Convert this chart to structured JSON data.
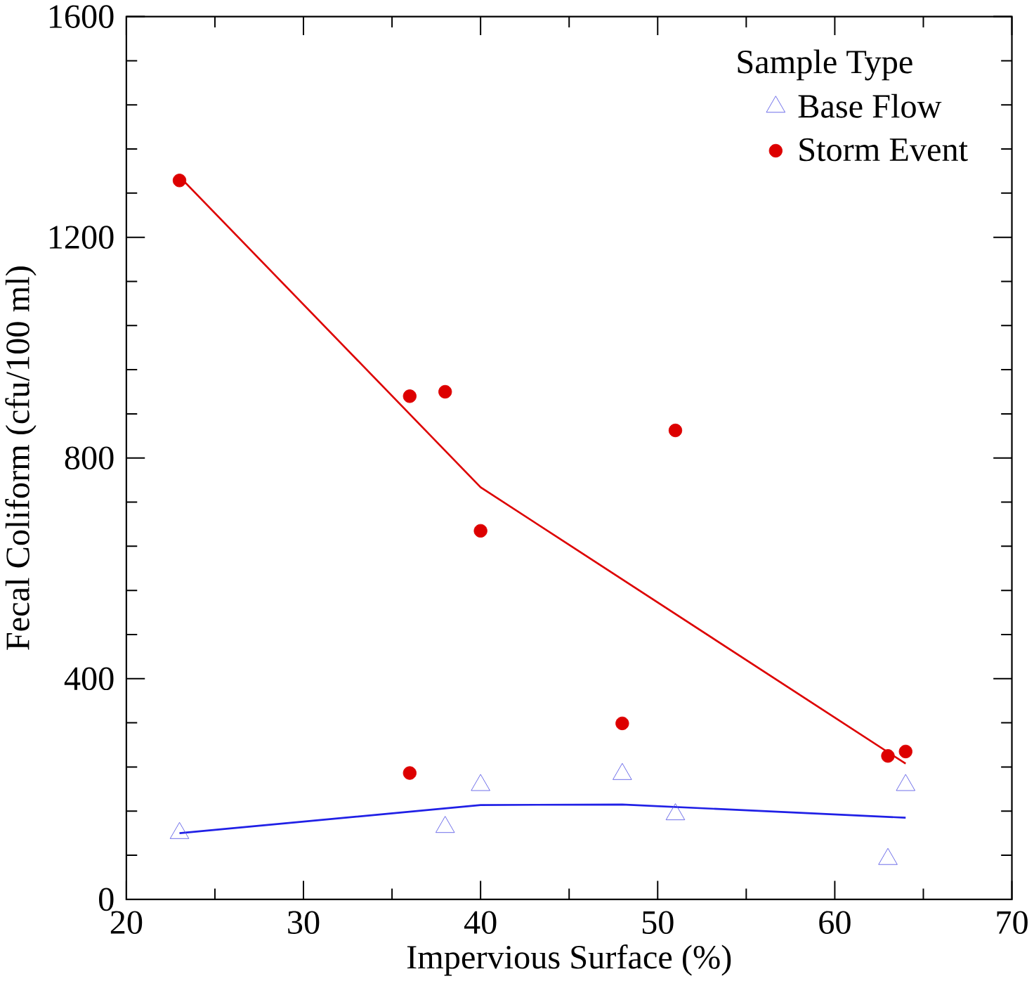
{
  "chart_data": {
    "type": "scatter",
    "xlabel": "Impervious Surface (%)",
    "ylabel": "Fecal Coliform (cfu/100 ml)",
    "legend_title": "Sample Type",
    "legend": "top right",
    "xlim": [
      20,
      70
    ],
    "xticks": [
      20,
      30,
      40,
      50,
      60,
      70
    ],
    "ylim": [
      0,
      1600
    ],
    "yticks": [
      0,
      400,
      800,
      1200,
      1600
    ],
    "grid": false,
    "series": [
      {
        "name": "Base Flow",
        "marker": "triangle",
        "color": "#5a5ae6",
        "x": [
          23,
          38,
          40,
          48,
          51,
          63,
          64
        ],
        "values": [
          120,
          131,
          207,
          227,
          154,
          73,
          207
        ]
      },
      {
        "name": "Storm Event",
        "marker": "circle",
        "color": "#dd0000",
        "x": [
          23,
          36,
          38,
          40,
          51,
          36,
          48,
          63,
          64
        ],
        "values": [
          1303,
          912,
          920,
          668,
          850,
          229,
          319,
          260,
          268
        ]
      },
      {
        "type": "line",
        "marker": "none",
        "color": "#dd0000",
        "x": [
          23,
          40,
          64
        ],
        "values": [
          1310,
          747,
          246
        ]
      },
      {
        "type": "line",
        "marker": "none",
        "color": "#2020e6",
        "x": [
          23,
          40,
          48,
          64
        ],
        "values": [
          120,
          171,
          172,
          148
        ]
      }
    ]
  }
}
